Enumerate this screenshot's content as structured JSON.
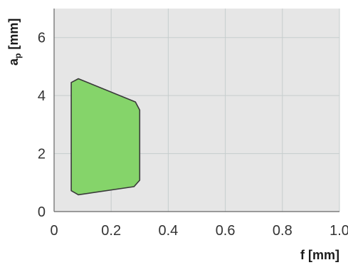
{
  "chart_data": {
    "type": "area",
    "xlabel": "f [mm]",
    "ylabel": {
      "main": "a",
      "subscript": "p",
      "unit": " [mm]"
    },
    "xlim": [
      0,
      1.0
    ],
    "ylim": [
      0,
      7
    ],
    "xticks": [
      0,
      0.2,
      0.4,
      0.6,
      0.8,
      1.0
    ],
    "xtick_labels": [
      "0",
      "0.2",
      "0.4",
      "0.6",
      "0.8",
      "1.0"
    ],
    "yticks": [
      0,
      2,
      4,
      6
    ],
    "ytick_labels": [
      "0",
      "2",
      "4",
      "6"
    ],
    "grid": true,
    "series": [
      {
        "region": [
          [
            0.06,
            4.45
          ],
          [
            0.085,
            4.58
          ],
          [
            0.285,
            3.78
          ],
          [
            0.3,
            3.5
          ],
          [
            0.3,
            1.08
          ],
          [
            0.28,
            0.86
          ],
          [
            0.085,
            0.58
          ],
          [
            0.06,
            0.72
          ]
        ]
      }
    ],
    "colors": {
      "region_fill": "#85d46a",
      "region_stroke": "#3a3a3a",
      "plot_background": "#e6e6e6",
      "grid": "#c6cdcd",
      "axis": "#666666"
    }
  }
}
